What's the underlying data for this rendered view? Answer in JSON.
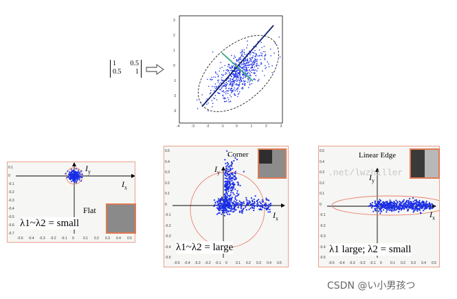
{
  "matrix": [
    [
      "1",
      "0.5"
    ],
    [
      "0.5",
      "1"
    ]
  ],
  "top_plot": {
    "x_ticks": [
      "-4",
      "-3",
      "-2",
      "-1",
      "0",
      "1",
      "2",
      "3"
    ],
    "y_ticks": [
      "3",
      "2",
      "1",
      "0",
      "-1",
      "-2",
      "-3"
    ]
  },
  "flat": {
    "label": "Flat",
    "caption": "λ1~λ2 = small",
    "iy": "I",
    "iy_sub": "y",
    "ix": "I",
    "ix_sub": "x",
    "x_ticks": [
      "-0.5",
      "-0.4",
      "-0.3",
      "-0.2",
      "-0.1",
      "0",
      "0.1",
      "0.2",
      "0.3",
      "0.4",
      "0.5"
    ],
    "y_ticks": [
      "0.1",
      "0",
      "-0.1",
      "-0.2",
      "-0.3",
      "-0.4",
      "-0.5",
      "-0.6",
      "-0.7"
    ]
  },
  "corner": {
    "label": "Corner",
    "caption": "λ1~λ2 = large",
    "iy": "I",
    "iy_sub": "y",
    "ix": "I",
    "ix_sub": "x",
    "x_ticks": [
      "-0.5",
      "-0.4",
      "-0.3",
      "-0.2",
      "-0.1",
      "0",
      "0.1",
      "0.2",
      "0.3",
      "0.4",
      "0.5"
    ],
    "y_ticks": [
      "0.5",
      "0.4",
      "0.3",
      "0.2",
      "0.1",
      "0",
      "-0.1",
      "-0.2",
      "-0.3",
      "-0.4",
      "-0.5"
    ]
  },
  "edge": {
    "label": "Linear Edge",
    "caption": "λ1 large; λ2 = small",
    "iy": "I",
    "iy_sub": "y",
    "ix": "I",
    "ix_sub": "x",
    "x_ticks": [
      "-0.5",
      "-0.4",
      "-0.3",
      "-0.2",
      "-0.1",
      "0",
      "0.1",
      "0.2",
      "0.3",
      "0.4",
      "0.5"
    ],
    "y_ticks": [
      "0.5",
      "0.4",
      "0.3",
      "0.2",
      "0.1",
      "0",
      "-0.1",
      "-0.2",
      "-0.3",
      "-0.4",
      "-0.5"
    ]
  },
  "watermark": ".net/lwzhiller",
  "credit": "CSDN @い小男孩つ",
  "colors": {
    "points": "#1a2ee6",
    "ellipse": "#e8806a",
    "major_axis": "#10206a",
    "minor_axis": "#2fa87c",
    "border": "#e07850"
  }
}
